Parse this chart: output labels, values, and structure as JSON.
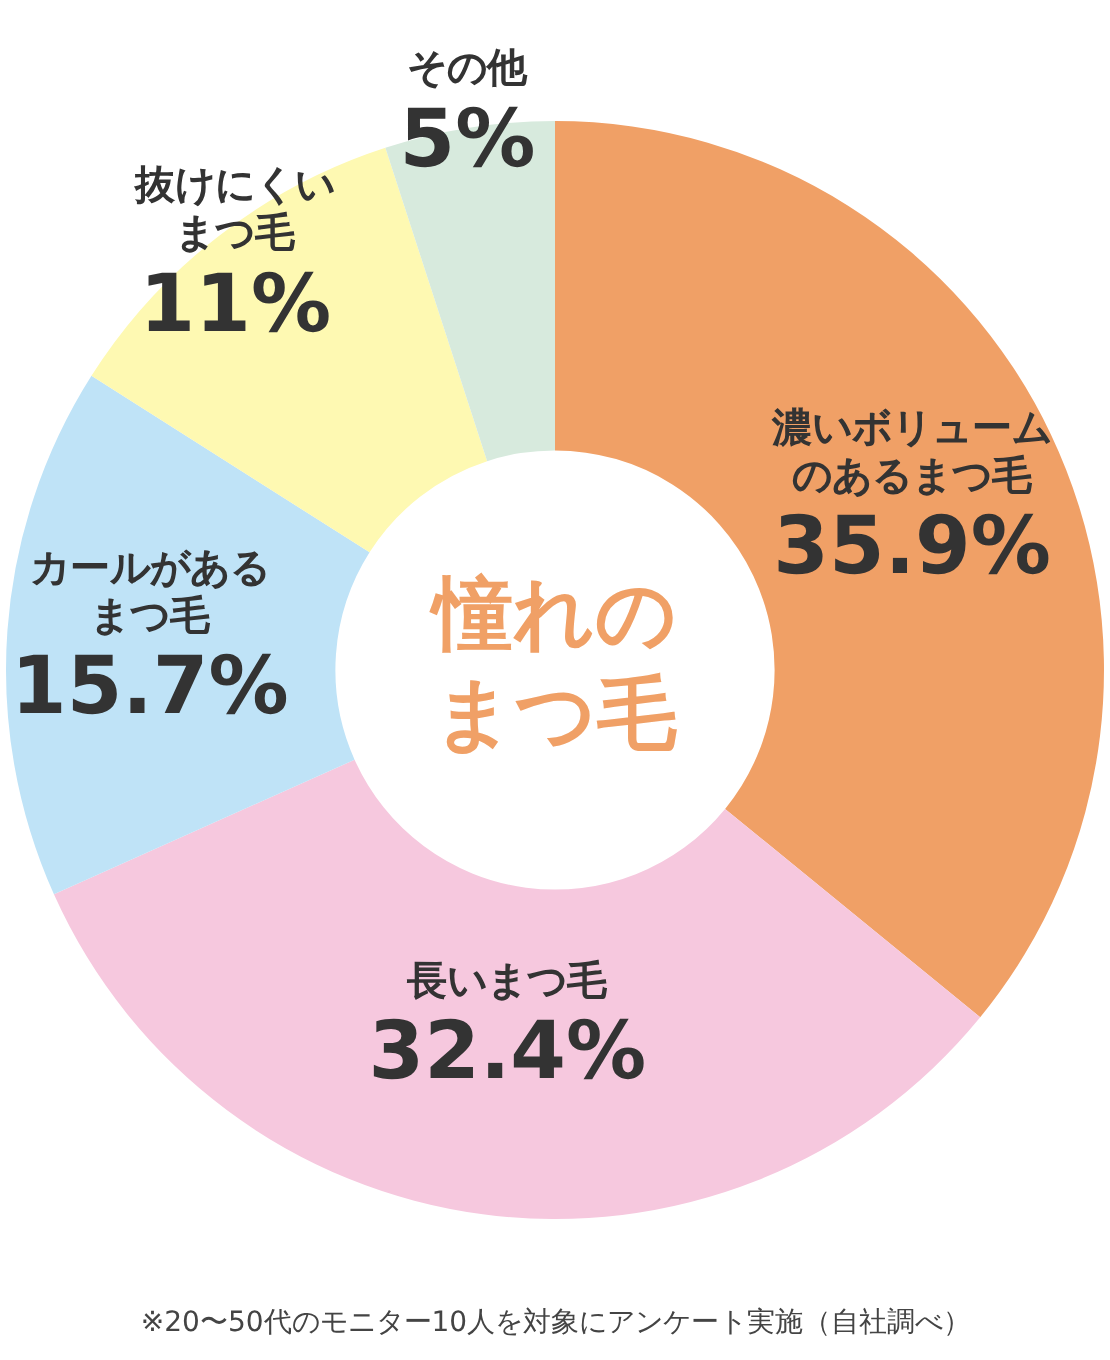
{
  "chart_data": {
    "type": "donut",
    "title": "憧れのまつ毛",
    "categories": [
      "濃いボリュームのあるまつ毛",
      "長いまつ毛",
      "カールがあるまつ毛",
      "抜けにくいまつ毛",
      "その他"
    ],
    "values": [
      35.9,
      32.4,
      15.7,
      11,
      5
    ],
    "value_labels": [
      "35.9%",
      "32.4%",
      "15.7%",
      "11%",
      "5%"
    ],
    "colors": [
      "#f0a066",
      "#f6c8de",
      "#bfe3f7",
      "#fef9b2",
      "#d7eadd"
    ],
    "legend": false,
    "annotations": [
      "※20〜50代のモニター10人を対象にアンケート実施（自社調べ）"
    ]
  }
}
